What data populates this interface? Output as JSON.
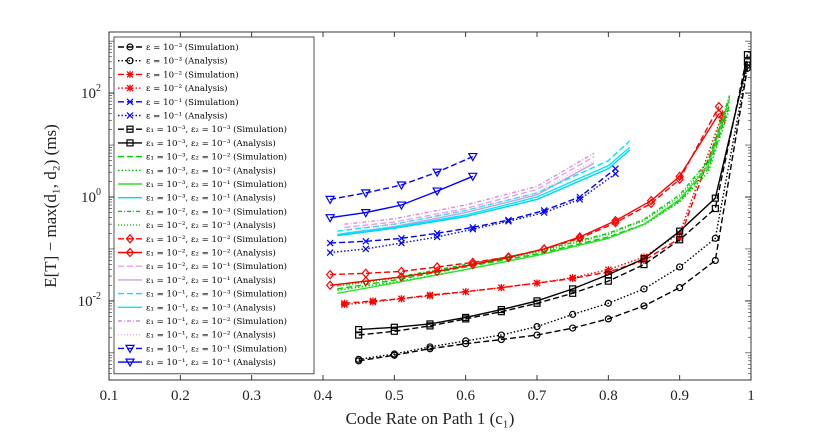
{
  "chart_data": {
    "type": "line",
    "title": "",
    "xlabel": "Code Rate on Path 1 (c₁)",
    "ylabel": "E[T] − max(d₁, d₂) (ms)",
    "xlim": [
      0.1,
      1.0
    ],
    "ylim": [
      0.0003,
      1500
    ],
    "yscale": "log",
    "grid": false,
    "legend_position": "top-left",
    "x_ticks": [
      "0.1",
      "0.2",
      "0.3",
      "0.4",
      "0.5",
      "0.6",
      "0.7",
      "0.8",
      "0.9",
      "1"
    ],
    "y_ticks": [
      {
        "base": "10",
        "exp": "-2",
        "value": 0.01
      },
      {
        "base": "10",
        "exp": "0",
        "value": 1
      },
      {
        "base": "10",
        "exp": "2",
        "value": 100
      }
    ],
    "series": [
      {
        "name": "ε = 10⁻³ (Simulation)",
        "color": "#000000",
        "dash": "6,3",
        "marker": "circle",
        "x": [
          0.45,
          0.5,
          0.55,
          0.6,
          0.65,
          0.7,
          0.75,
          0.8,
          0.85,
          0.9,
          0.95,
          0.995
        ],
        "y": [
          0.0007,
          0.0009,
          0.0012,
          0.0015,
          0.0018,
          0.0022,
          0.003,
          0.0045,
          0.008,
          0.018,
          0.06,
          300
        ]
      },
      {
        "name": "ε = 10⁻³ (Analysis)",
        "color": "#000000",
        "dash": "1.5,2",
        "marker": "circle",
        "x": [
          0.45,
          0.5,
          0.55,
          0.6,
          0.65,
          0.7,
          0.75,
          0.8,
          0.85,
          0.9,
          0.95,
          0.995
        ],
        "y": [
          0.00075,
          0.00095,
          0.0013,
          0.0017,
          0.0022,
          0.0032,
          0.0055,
          0.009,
          0.017,
          0.045,
          0.16,
          350
        ]
      },
      {
        "name": "ε = 10⁻² (Simulation)",
        "color": "#ff0000",
        "dash": "6,3",
        "marker": "asterisk",
        "x": [
          0.43,
          0.47,
          0.51,
          0.55,
          0.6,
          0.65,
          0.7,
          0.75,
          0.8,
          0.85,
          0.9,
          0.96
        ],
        "y": [
          0.009,
          0.01,
          0.011,
          0.013,
          0.015,
          0.018,
          0.022,
          0.027,
          0.036,
          0.06,
          0.16,
          30
        ]
      },
      {
        "name": "ε = 10⁻² (Analysis)",
        "color": "#ff0000",
        "dash": "1.5,2",
        "marker": "asterisk",
        "x": [
          0.43,
          0.47,
          0.51,
          0.55,
          0.6,
          0.65,
          0.7,
          0.75,
          0.8,
          0.85,
          0.9,
          0.96
        ],
        "y": [
          0.0085,
          0.0095,
          0.011,
          0.0125,
          0.015,
          0.018,
          0.022,
          0.028,
          0.04,
          0.07,
          0.2,
          40
        ]
      },
      {
        "name": "ε = 10⁻¹ (Simulation)",
        "color": "#0000ff",
        "dash": "6,3",
        "marker": "x",
        "x": [
          0.41,
          0.46,
          0.51,
          0.56,
          0.61,
          0.66,
          0.71,
          0.76,
          0.81
        ],
        "y": [
          0.13,
          0.14,
          0.16,
          0.2,
          0.26,
          0.36,
          0.55,
          1.0,
          3.5
        ]
      },
      {
        "name": "ε = 10⁻¹ (Analysis)",
        "color": "#0000ff",
        "dash": "1.5,2",
        "marker": "x",
        "x": [
          0.41,
          0.46,
          0.51,
          0.56,
          0.61,
          0.66,
          0.71,
          0.76,
          0.81
        ],
        "y": [
          0.085,
          0.1,
          0.13,
          0.17,
          0.24,
          0.34,
          0.5,
          0.9,
          2.8
        ]
      },
      {
        "name": "ε₁ = 10⁻³, ε₂ = 10⁻³ (Simulation)",
        "color": "#000000",
        "dash": "6,3",
        "marker": "square",
        "x": [
          0.45,
          0.5,
          0.55,
          0.6,
          0.65,
          0.7,
          0.75,
          0.8,
          0.85,
          0.9,
          0.95,
          0.995
        ],
        "y": [
          0.0022,
          0.0026,
          0.0033,
          0.0045,
          0.0062,
          0.009,
          0.014,
          0.024,
          0.05,
          0.15,
          0.6,
          550
        ]
      },
      {
        "name": "ε₁ = 10⁻³, ε₂ = 10⁻³ (Analysis)",
        "color": "#000000",
        "dash": "",
        "marker": "square",
        "x": [
          0.45,
          0.5,
          0.55,
          0.6,
          0.65,
          0.7,
          0.75,
          0.8,
          0.85,
          0.9,
          0.95,
          0.995
        ],
        "y": [
          0.0028,
          0.0031,
          0.0036,
          0.0048,
          0.0068,
          0.01,
          0.017,
          0.032,
          0.065,
          0.22,
          0.95,
          400
        ]
      },
      {
        "name": "ε₁ = 10⁻³, ε₂ = 10⁻² (Simulation)",
        "color": "#00cc00",
        "dash": "6,3",
        "marker": "",
        "x": [
          0.42,
          0.5,
          0.6,
          0.7,
          0.8,
          0.85,
          0.9,
          0.94,
          0.97
        ],
        "y": [
          0.017,
          0.025,
          0.045,
          0.08,
          0.17,
          0.3,
          0.85,
          3.5,
          60
        ]
      },
      {
        "name": "ε₁ = 10⁻³, ε₂ = 10⁻² (Analysis)",
        "color": "#00cc00",
        "dash": "1.5,2",
        "marker": "",
        "x": [
          0.42,
          0.5,
          0.6,
          0.7,
          0.8,
          0.85,
          0.9,
          0.94,
          0.97
        ],
        "y": [
          0.016,
          0.023,
          0.04,
          0.075,
          0.16,
          0.29,
          0.8,
          3,
          50
        ]
      },
      {
        "name": "ε₁ = 10⁻³, ε₂ = 10⁻¹ (Simulation)",
        "color": "#33dd33",
        "dash": "",
        "marker": "",
        "x": [
          0.42,
          0.5,
          0.6,
          0.7,
          0.8,
          0.85,
          0.9,
          0.94,
          0.97
        ],
        "y": [
          0.014,
          0.022,
          0.04,
          0.075,
          0.16,
          0.3,
          0.9,
          4,
          80
        ]
      },
      {
        "name": "ε₁ = 10⁻³, ε₂ = 10⁻¹ (Analysis)",
        "color": "#00d4f0",
        "dash": "",
        "marker": "",
        "x": [
          0.42,
          0.5,
          0.6,
          0.7,
          0.8,
          0.83
        ],
        "y": [
          0.18,
          0.25,
          0.42,
          0.9,
          3.5,
          8
        ]
      },
      {
        "name": "ε₁ = 10⁻², ε₂ = 10⁻³ (Simulation)",
        "color": "#00cc00",
        "dash": "4,2,1,2",
        "marker": "",
        "x": [
          0.42,
          0.5,
          0.6,
          0.7,
          0.8,
          0.85,
          0.9,
          0.94,
          0.97
        ],
        "y": [
          0.02,
          0.028,
          0.05,
          0.09,
          0.2,
          0.37,
          1.1,
          5,
          90
        ]
      },
      {
        "name": "ε₁ = 10⁻², ε₂ = 10⁻³ (Analysis)",
        "color": "#00cc00",
        "dash": "1,2",
        "marker": "",
        "x": [
          0.42,
          0.5,
          0.6,
          0.7,
          0.8,
          0.85,
          0.9,
          0.94,
          0.97
        ],
        "y": [
          0.019,
          0.027,
          0.048,
          0.085,
          0.19,
          0.35,
          1.0,
          4.5,
          70
        ]
      },
      {
        "name": "ε₁ = 10⁻², ε₂ = 10⁻² (Simulation)",
        "color": "#ff0000",
        "dash": "6,3",
        "marker": "diamond",
        "x": [
          0.41,
          0.46,
          0.51,
          0.56,
          0.61,
          0.66,
          0.71,
          0.76,
          0.81,
          0.86,
          0.9,
          0.955
        ],
        "y": [
          0.032,
          0.034,
          0.037,
          0.045,
          0.055,
          0.07,
          0.1,
          0.16,
          0.32,
          0.75,
          2.2,
          55
        ]
      },
      {
        "name": "ε₁ = 10⁻², ε₂ = 10⁻² (Analysis)",
        "color": "#ff0000",
        "dash": "",
        "marker": "diamond",
        "x": [
          0.41,
          0.46,
          0.51,
          0.56,
          0.61,
          0.66,
          0.71,
          0.76,
          0.81,
          0.86,
          0.9,
          0.955
        ],
        "y": [
          0.02,
          0.024,
          0.029,
          0.037,
          0.05,
          0.068,
          0.1,
          0.17,
          0.35,
          0.85,
          2.5,
          40
        ]
      },
      {
        "name": "ε₁ = 10⁻², ε₂ = 10⁻¹ (Simulation)",
        "color": "#e8a0e8",
        "dash": "6,3",
        "marker": "",
        "x": [
          0.43,
          0.5,
          0.6,
          0.7,
          0.78
        ],
        "y": [
          0.26,
          0.33,
          0.6,
          1.4,
          6
        ]
      },
      {
        "name": "ε₁ = 10⁻², ε₂ = 10⁻¹ (Analysis)",
        "color": "#c7a0e0",
        "dash": "",
        "marker": "",
        "x": [
          0.43,
          0.5,
          0.6,
          0.7,
          0.78
        ],
        "y": [
          0.2,
          0.27,
          0.5,
          1.1,
          4.5
        ]
      },
      {
        "name": "ε₁ = 10⁻¹, ε₂ = 10⁻³ (Simulation)",
        "color": "#00e5ff",
        "dash": "6,3",
        "marker": "",
        "x": [
          0.42,
          0.5,
          0.6,
          0.7,
          0.8,
          0.83
        ],
        "y": [
          0.22,
          0.3,
          0.55,
          1.2,
          5,
          12
        ]
      },
      {
        "name": "ε₁ = 10⁻¹, ε₂ = 10⁻³ (Analysis)",
        "color": "#00e5ff",
        "dash": "",
        "marker": "",
        "x": [
          0.42,
          0.5,
          0.6,
          0.7,
          0.8,
          0.83
        ],
        "y": [
          0.19,
          0.26,
          0.45,
          1.0,
          4,
          9
        ]
      },
      {
        "name": "ε₁ = 10⁻¹, ε₂ = 10⁻² (Simulation)",
        "color": "#d78be0",
        "dash": "4,2,1,2",
        "marker": "",
        "x": [
          0.43,
          0.5,
          0.6,
          0.7,
          0.78
        ],
        "y": [
          0.3,
          0.38,
          0.7,
          1.6,
          7
        ]
      },
      {
        "name": "ε₁ = 10⁻¹, ε₂ = 10⁻² (Analysis)",
        "color": "#e2b0ee",
        "dash": "1,2",
        "marker": "",
        "x": [
          0.43,
          0.5,
          0.6,
          0.7,
          0.78
        ],
        "y": [
          0.24,
          0.3,
          0.55,
          1.2,
          5
        ]
      },
      {
        "name": "ε₁ = 10⁻¹, ε₂ = 10⁻¹ (Simulation)",
        "color": "#0000ff",
        "dash": "6,3",
        "marker": "triangle",
        "x": [
          0.41,
          0.46,
          0.51,
          0.56,
          0.61
        ],
        "y": [
          0.9,
          1.2,
          1.7,
          3,
          6
        ]
      },
      {
        "name": "ε₁ = 10⁻¹, ε₂ = 10⁻¹ (Analysis)",
        "color": "#0000ff",
        "dash": "",
        "marker": "triangle",
        "x": [
          0.41,
          0.46,
          0.51,
          0.56,
          0.61
        ],
        "y": [
          0.4,
          0.5,
          0.7,
          1.3,
          2.5
        ]
      }
    ]
  }
}
